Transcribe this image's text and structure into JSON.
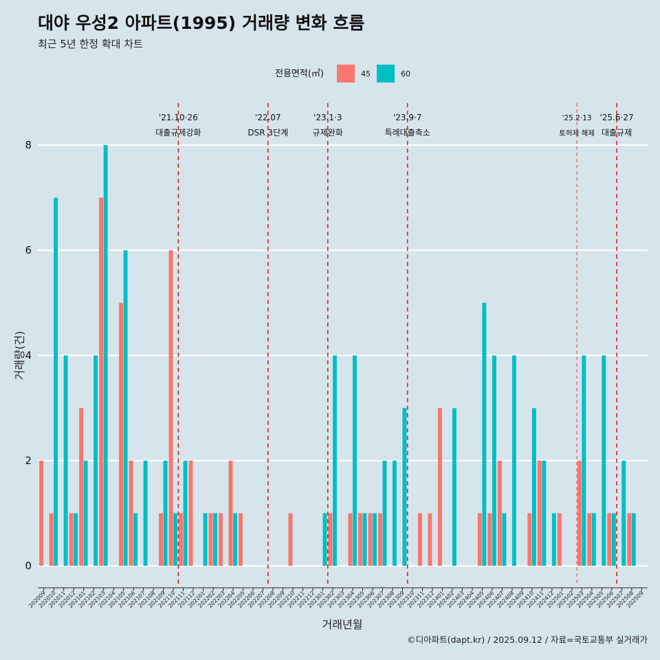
{
  "chart_data": {
    "type": "bar",
    "title": "대야 우성2 아파트(1995) 거래량 변화 흐름",
    "subtitle": "최근 5년 한정 확대 차트",
    "xlabel": "거래년월",
    "ylabel": "거래량(건)",
    "ylim": [
      0,
      8
    ],
    "yticks": [
      "0",
      "2",
      "4",
      "6",
      "8"
    ],
    "legend": {
      "title": "전용면적(㎡)",
      "position": "top"
    },
    "caption": "©디아파트(dapt.kr) / 2025.09.12 / 자료=국토교통부 실거래가",
    "categories": [
      "202009",
      "202010",
      "202011",
      "202012",
      "202101",
      "202102",
      "202103",
      "202104",
      "202105",
      "202106",
      "202107",
      "202108",
      "202109",
      "202110",
      "202111",
      "202112",
      "202201",
      "202202",
      "202203",
      "202204",
      "202205",
      "202206",
      "202207",
      "202208",
      "202209",
      "202210",
      "202211",
      "202212",
      "202301",
      "202302",
      "202303",
      "202304",
      "202305",
      "202306",
      "202307",
      "202308",
      "202309",
      "202310",
      "202311",
      "202312",
      "202401",
      "202402",
      "202403",
      "202404",
      "202405",
      "202406",
      "202407",
      "202408",
      "202409",
      "202410",
      "202411",
      "202412",
      "202501",
      "202502",
      "202503",
      "202504",
      "202505",
      "202506",
      "202507",
      "202508",
      "202509"
    ],
    "series": [
      {
        "name": "45",
        "color": "#f8766d",
        "values": [
          2,
          1,
          0,
          1,
          3,
          0,
          7,
          0,
          5,
          2,
          0,
          0,
          1,
          6,
          1,
          2,
          0,
          1,
          1,
          2,
          1,
          0,
          0,
          0,
          0,
          1,
          0,
          0,
          0,
          1,
          0,
          1,
          1,
          1,
          1,
          0,
          0,
          0,
          1,
          1,
          3,
          0,
          0,
          0,
          1,
          1,
          2,
          0,
          0,
          1,
          2,
          0,
          1,
          0,
          2,
          1,
          0,
          1,
          0,
          1,
          0
        ]
      },
      {
        "name": "60",
        "color": "#00bfc4",
        "values": [
          0,
          7,
          4,
          1,
          2,
          4,
          8,
          0,
          6,
          1,
          2,
          0,
          2,
          1,
          2,
          0,
          1,
          1,
          0,
          1,
          0,
          0,
          0,
          0,
          0,
          0,
          0,
          0,
          1,
          4,
          0,
          4,
          1,
          1,
          2,
          2,
          3,
          0,
          0,
          0,
          0,
          3,
          0,
          0,
          5,
          4,
          1,
          4,
          0,
          3,
          2,
          1,
          0,
          0,
          4,
          1,
          4,
          1,
          2,
          1,
          0
        ]
      }
    ],
    "events": [
      {
        "date": "'21.10·26",
        "label": "대출규제강화",
        "after": "202110",
        "style": "dashed"
      },
      {
        "date": "'22.07",
        "label": "DSR 3단계",
        "after": "202207",
        "style": "dashed"
      },
      {
        "date": "'23.1·3",
        "label": "규제완화",
        "after": "202301",
        "style": "dashed"
      },
      {
        "date": "'23.9·7",
        "label": "특례대출축소",
        "after": "202309",
        "style": "dashed"
      },
      {
        "date": "'25.2·13",
        "label": "토허제 해제",
        "after": "202502",
        "style": "thin"
      },
      {
        "date": "'25.6·27",
        "label": "대출규제",
        "after": "202506",
        "style": "dashed"
      }
    ]
  }
}
